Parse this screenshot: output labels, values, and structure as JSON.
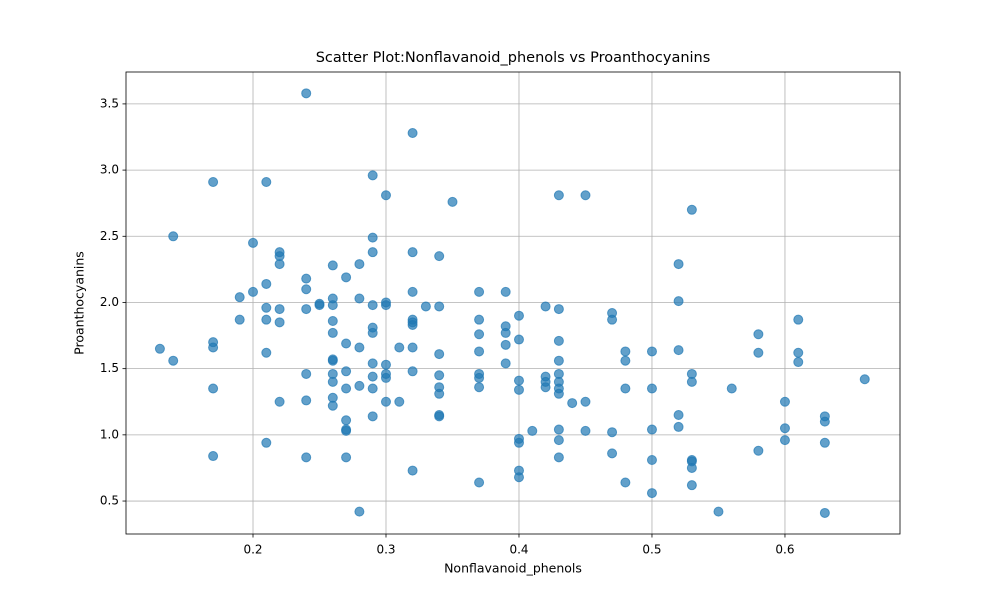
{
  "chart_data": {
    "type": "scatter",
    "title": "Scatter Plot:Nonflavanoid_phenols vs Proanthocyanins",
    "x_label": "Nonflavanoid_phenols",
    "y_label": "Proanthocyanins",
    "color": "#1f77b4",
    "grid": true,
    "xlim": [
      0.1045,
      0.6865
    ],
    "ylim": [
      0.251,
      3.741
    ],
    "xticks": [
      0.2,
      0.3,
      0.4,
      0.5,
      0.6
    ],
    "yticks": [
      0.5,
      {
        "value": 1,
        "label": "1.0"
      },
      1.5,
      {
        "value": 2,
        "label": "2.0"
      },
      2.5,
      {
        "value": 3,
        "label": "3.0"
      },
      3.5
    ],
    "x": [
      0.13,
      0.14,
      0.14,
      0.17,
      0.17,
      0.17,
      0.17,
      0.17,
      0.19,
      0.19,
      0.2,
      0.2,
      0.21,
      0.21,
      0.21,
      0.21,
      0.21,
      0.21,
      0.22,
      0.22,
      0.22,
      0.22,
      0.22,
      0.22,
      0.24,
      0.24,
      0.24,
      0.24,
      0.24,
      0.24,
      0.24,
      0.25,
      0.25,
      0.26,
      0.26,
      0.26,
      0.26,
      0.26,
      0.26,
      0.26,
      0.26,
      0.26,
      0.26,
      0.26,
      0.27,
      0.27,
      0.27,
      0.27,
      0.27,
      0.27,
      0.27,
      0.27,
      0.28,
      0.28,
      0.28,
      0.28,
      0.28,
      0.29,
      0.29,
      0.29,
      0.29,
      0.29,
      0.29,
      0.29,
      0.29,
      0.29,
      0.29,
      0.3,
      0.3,
      0.3,
      0.3,
      0.3,
      0.3,
      0.3,
      0.31,
      0.31,
      0.32,
      0.32,
      0.32,
      0.32,
      0.32,
      0.32,
      0.32,
      0.32,
      0.32,
      0.33,
      0.34,
      0.34,
      0.34,
      0.34,
      0.34,
      0.34,
      0.34,
      0.34,
      0.35,
      0.37,
      0.37,
      0.37,
      0.37,
      0.37,
      0.37,
      0.37,
      0.37,
      0.39,
      0.39,
      0.39,
      0.39,
      0.39,
      0.4,
      0.4,
      0.4,
      0.4,
      0.4,
      0.4,
      0.4,
      0.4,
      0.41,
      0.42,
      0.42,
      0.42,
      0.42,
      0.43,
      0.43,
      0.43,
      0.43,
      0.43,
      0.43,
      0.43,
      0.43,
      0.43,
      0.43,
      0.43,
      0.44,
      0.45,
      0.45,
      0.45,
      0.47,
      0.47,
      0.47,
      0.47,
      0.48,
      0.48,
      0.48,
      0.48,
      0.5,
      0.5,
      0.5,
      0.5,
      0.5,
      0.52,
      0.52,
      0.52,
      0.52,
      0.52,
      0.53,
      0.53,
      0.53,
      0.53,
      0.53,
      0.53,
      0.53,
      0.55,
      0.56,
      0.58,
      0.58,
      0.58,
      0.6,
      0.6,
      0.6,
      0.61,
      0.61,
      0.61,
      0.63,
      0.63,
      0.63,
      0.63,
      0.66
    ],
    "values": [
      1.65,
      2.5,
      1.56,
      2.91,
      1.7,
      1.66,
      1.35,
      0.84,
      2.04,
      1.87,
      2.45,
      2.08,
      2.91,
      2.14,
      1.96,
      1.87,
      1.62,
      0.94,
      2.38,
      2.35,
      2.29,
      1.95,
      1.85,
      1.25,
      3.58,
      2.18,
      2.1,
      1.95,
      1.46,
      1.26,
      0.83,
      1.98,
      1.99,
      2.28,
      2.03,
      1.98,
      1.86,
      1.77,
      1.57,
      1.56,
      1.46,
      1.4,
      1.28,
      1.22,
      2.19,
      1.69,
      1.48,
      1.35,
      1.11,
      1.04,
      1.03,
      0.83,
      2.29,
      2.03,
      1.66,
      1.37,
      0.42,
      2.96,
      2.49,
      2.38,
      1.98,
      1.81,
      1.77,
      1.54,
      1.44,
      1.35,
      1.14,
      2.81,
      2.0,
      1.98,
      1.53,
      1.46,
      1.43,
      1.25,
      1.66,
      1.25,
      3.28,
      2.38,
      2.08,
      1.87,
      1.85,
      1.83,
      1.66,
      1.48,
      0.73,
      1.97,
      2.35,
      1.97,
      1.61,
      1.45,
      1.36,
      1.31,
      1.15,
      1.14,
      2.76,
      2.08,
      1.87,
      1.76,
      1.63,
      1.46,
      1.43,
      1.36,
      0.64,
      2.08,
      1.82,
      1.77,
      1.68,
      1.54,
      1.9,
      1.72,
      1.41,
      1.34,
      0.97,
      0.94,
      0.73,
      0.68,
      1.03,
      1.97,
      1.44,
      1.4,
      1.36,
      2.81,
      1.95,
      1.71,
      1.56,
      1.46,
      1.4,
      1.35,
      1.31,
      1.04,
      0.96,
      0.83,
      1.24,
      2.81,
      1.25,
      1.03,
      1.92,
      1.87,
      1.02,
      0.86,
      1.63,
      1.56,
      1.35,
      0.64,
      1.63,
      1.35,
      1.04,
      0.81,
      0.56,
      2.29,
      2.01,
      1.64,
      1.15,
      1.06,
      2.7,
      1.46,
      1.4,
      0.81,
      0.8,
      0.75,
      0.62,
      0.42,
      1.35,
      1.76,
      1.62,
      0.88,
      1.25,
      1.05,
      0.96,
      1.87,
      1.62,
      1.55,
      1.14,
      1.1,
      0.94,
      0.41,
      1.42
    ]
  }
}
